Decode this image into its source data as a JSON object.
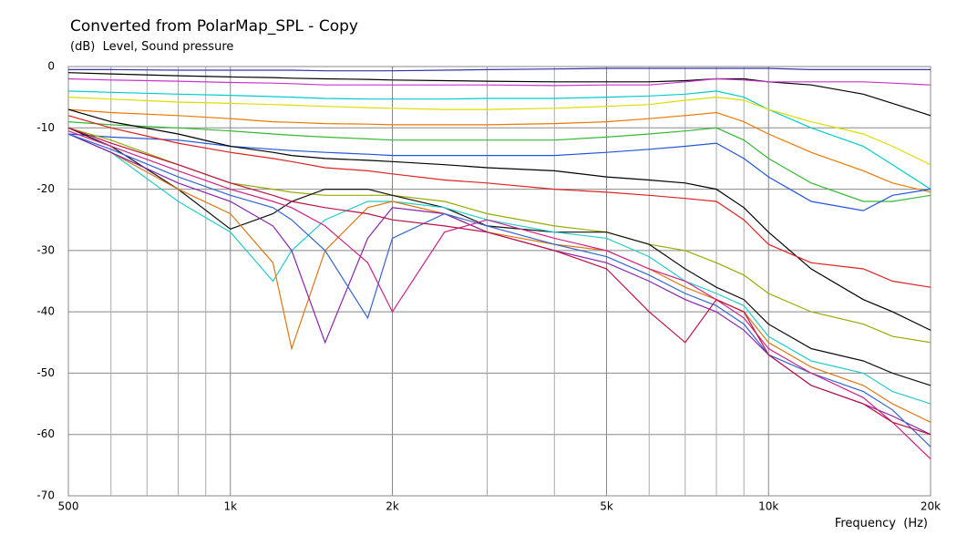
{
  "chart_data": {
    "type": "line",
    "title": "Converted from PolarMap_SPL - Copy",
    "subtitle": "(dB)  Level, Sound pressure",
    "x_label": "Frequency  (Hz)",
    "x_scale": "log",
    "grid": true,
    "xlim": [
      500,
      20000
    ],
    "ylim": [
      -70,
      0
    ],
    "xticks": [
      500,
      {
        "value": 1000,
        "label": "1k"
      },
      {
        "value": 2000,
        "label": "2k"
      },
      {
        "value": 5000,
        "label": "5k"
      },
      {
        "value": 10000,
        "label": "10k"
      },
      {
        "value": 20000,
        "label": "20k"
      }
    ],
    "xminor": [
      600,
      700,
      800,
      900,
      3000,
      4000,
      6000,
      7000,
      8000,
      9000
    ],
    "yticks": [
      0,
      -10,
      -20,
      -30,
      -40,
      -50,
      -60,
      -70
    ],
    "x": [
      500,
      600,
      800,
      1000,
      1200,
      1300,
      1500,
      1800,
      2000,
      2500,
      3000,
      4000,
      5000,
      6000,
      7000,
      8000,
      9000,
      10000,
      12000,
      15000,
      17000,
      20000
    ],
    "series": [
      {
        "color": "#3333aa",
        "values": [
          -0.5,
          -0.5,
          -0.6,
          -0.6,
          -0.6,
          -0.6,
          -0.7,
          -0.7,
          -0.7,
          -0.6,
          -0.5,
          -0.4,
          -0.3,
          -0.3,
          -0.3,
          -0.3,
          -0.3,
          -0.3,
          -0.5,
          -0.5,
          -0.5,
          -0.5
        ]
      },
      {
        "color": "#000000",
        "values": [
          -1,
          -1.2,
          -1.5,
          -1.7,
          -1.8,
          -1.9,
          -2,
          -2.1,
          -2.2,
          -2.3,
          -2.4,
          -2.5,
          -2.5,
          -2.5,
          -2.3,
          -2,
          -2,
          -2.5,
          -3,
          -4.5,
          -6,
          -8
        ]
      },
      {
        "color": "#cc33cc",
        "values": [
          -2,
          -2.2,
          -2.4,
          -2.6,
          -2.7,
          -2.8,
          -3,
          -3,
          -3,
          -3,
          -3,
          -3.1,
          -3,
          -3,
          -2.5,
          -2,
          -2.2,
          -2.5,
          -2.5,
          -2.5,
          -2.7,
          -3
        ]
      },
      {
        "color": "#00cccc",
        "values": [
          -4,
          -4.2,
          -4.5,
          -4.7,
          -4.9,
          -5,
          -5.2,
          -5.3,
          -5.3,
          -5.3,
          -5.2,
          -5.2,
          -5,
          -4.8,
          -4.5,
          -4,
          -5,
          -7,
          -10,
          -13,
          -16,
          -20
        ]
      },
      {
        "color": "#dddd00",
        "values": [
          -5,
          -5.3,
          -5.8,
          -6,
          -6.2,
          -6.3,
          -6.5,
          -6.7,
          -6.8,
          -7,
          -7,
          -6.8,
          -6.5,
          -6.2,
          -5.5,
          -5,
          -5.5,
          -7,
          -9,
          -11,
          -13,
          -16
        ]
      },
      {
        "color": "#ee7700",
        "values": [
          -7,
          -7.5,
          -8,
          -8.5,
          -9,
          -9.1,
          -9.3,
          -9.4,
          -9.5,
          -9.5,
          -9.5,
          -9.3,
          -9,
          -8.5,
          -8,
          -7.5,
          -9,
          -11,
          -14,
          -17,
          -19,
          -20.5
        ]
      },
      {
        "color": "#33bb33",
        "values": [
          -9,
          -9.5,
          -10,
          -10.5,
          -11,
          -11.2,
          -11.5,
          -11.8,
          -12,
          -12,
          -12,
          -12,
          -11.5,
          -11,
          -10.5,
          -10,
          -12,
          -15,
          -19,
          -22,
          -22,
          -21
        ]
      },
      {
        "color": "#2255dd",
        "values": [
          -11,
          -11.5,
          -12,
          -13,
          -13.5,
          -13.7,
          -14,
          -14.3,
          -14.5,
          -14.5,
          -14.5,
          -14.5,
          -14,
          -13.5,
          -13,
          -12.5,
          -15,
          -18,
          -22,
          -23.5,
          -21,
          -20
        ]
      },
      {
        "color": "#000000",
        "values": [
          -7,
          -9,
          -11,
          -13,
          -14,
          -14.5,
          -15,
          -15.3,
          -15.5,
          -16,
          -16.5,
          -17,
          -18,
          -18.5,
          -19,
          -20,
          -23,
          -27,
          -33,
          -38,
          -40,
          -43
        ]
      },
      {
        "color": "#dd2222",
        "values": [
          -8,
          -10,
          -12.5,
          -14,
          -15,
          -15.5,
          -16.5,
          -17,
          -17.5,
          -18.5,
          -19,
          -20,
          -20.5,
          -21,
          -21.5,
          -22,
          -25,
          -29,
          -32,
          -33,
          -35,
          -36
        ]
      },
      {
        "color": "#99aa00",
        "values": [
          -10,
          -12,
          -16,
          -19,
          -20,
          -20.5,
          -21,
          -21,
          -21,
          -22,
          -24,
          -26,
          -27,
          -29,
          -30,
          -32,
          -34,
          -37,
          -40,
          -42,
          -44,
          -45
        ]
      },
      {
        "color": "#111111",
        "values": [
          -10,
          -13,
          -20,
          -26.5,
          -24,
          -22,
          -20,
          -20,
          -21,
          -23,
          -26,
          -27,
          -27,
          -29,
          -33,
          -36,
          -38,
          -42,
          -46,
          -48,
          -50,
          -52
        ]
      },
      {
        "color": "#22cccc",
        "values": [
          -11,
          -14,
          -22,
          -27,
          -35,
          -30,
          -25,
          -22,
          -22,
          -23,
          -25,
          -27,
          -28,
          -31,
          -35,
          -37,
          -39,
          -44,
          -48,
          -50,
          -53,
          -55
        ]
      },
      {
        "color": "#dd7711",
        "values": [
          -11,
          -14,
          -20,
          -24,
          -32,
          -46,
          -30,
          -23,
          -22,
          -24,
          -27,
          -29,
          -30,
          -33,
          -36,
          -38,
          -40,
          -45,
          -49,
          -52,
          -55,
          -58
        ]
      },
      {
        "color": "#8822aa",
        "values": [
          -11,
          -14,
          -19,
          -22,
          -26,
          -30,
          -45,
          -28,
          -23,
          -24,
          -27,
          -30,
          -32,
          -35,
          -38,
          -40,
          -43,
          -47,
          -52,
          -55,
          -57,
          -60
        ]
      },
      {
        "color": "#3366cc",
        "values": [
          -11,
          -13.5,
          -18,
          -21,
          -23,
          -25,
          -30,
          -41,
          -28,
          -24,
          -26,
          -29,
          -31,
          -34,
          -37,
          -39,
          -42,
          -47,
          -50,
          -53,
          -56,
          -62
        ]
      },
      {
        "color": "#cc2288",
        "values": [
          -10.5,
          -13,
          -17,
          -20,
          -22,
          -23,
          -26,
          -32,
          -40,
          -27,
          -25,
          -28,
          -30,
          -33,
          -35,
          -38,
          -41,
          -46,
          -50,
          -54,
          -58,
          -64
        ]
      },
      {
        "color": "#bb1144",
        "values": [
          -10,
          -12.5,
          -16,
          -19,
          -21,
          -22,
          -23,
          -24,
          -25,
          -26,
          -27,
          -30,
          -33,
          -40,
          -45,
          -38,
          -40,
          -47,
          -52,
          -55,
          -58,
          -60
        ]
      }
    ]
  }
}
